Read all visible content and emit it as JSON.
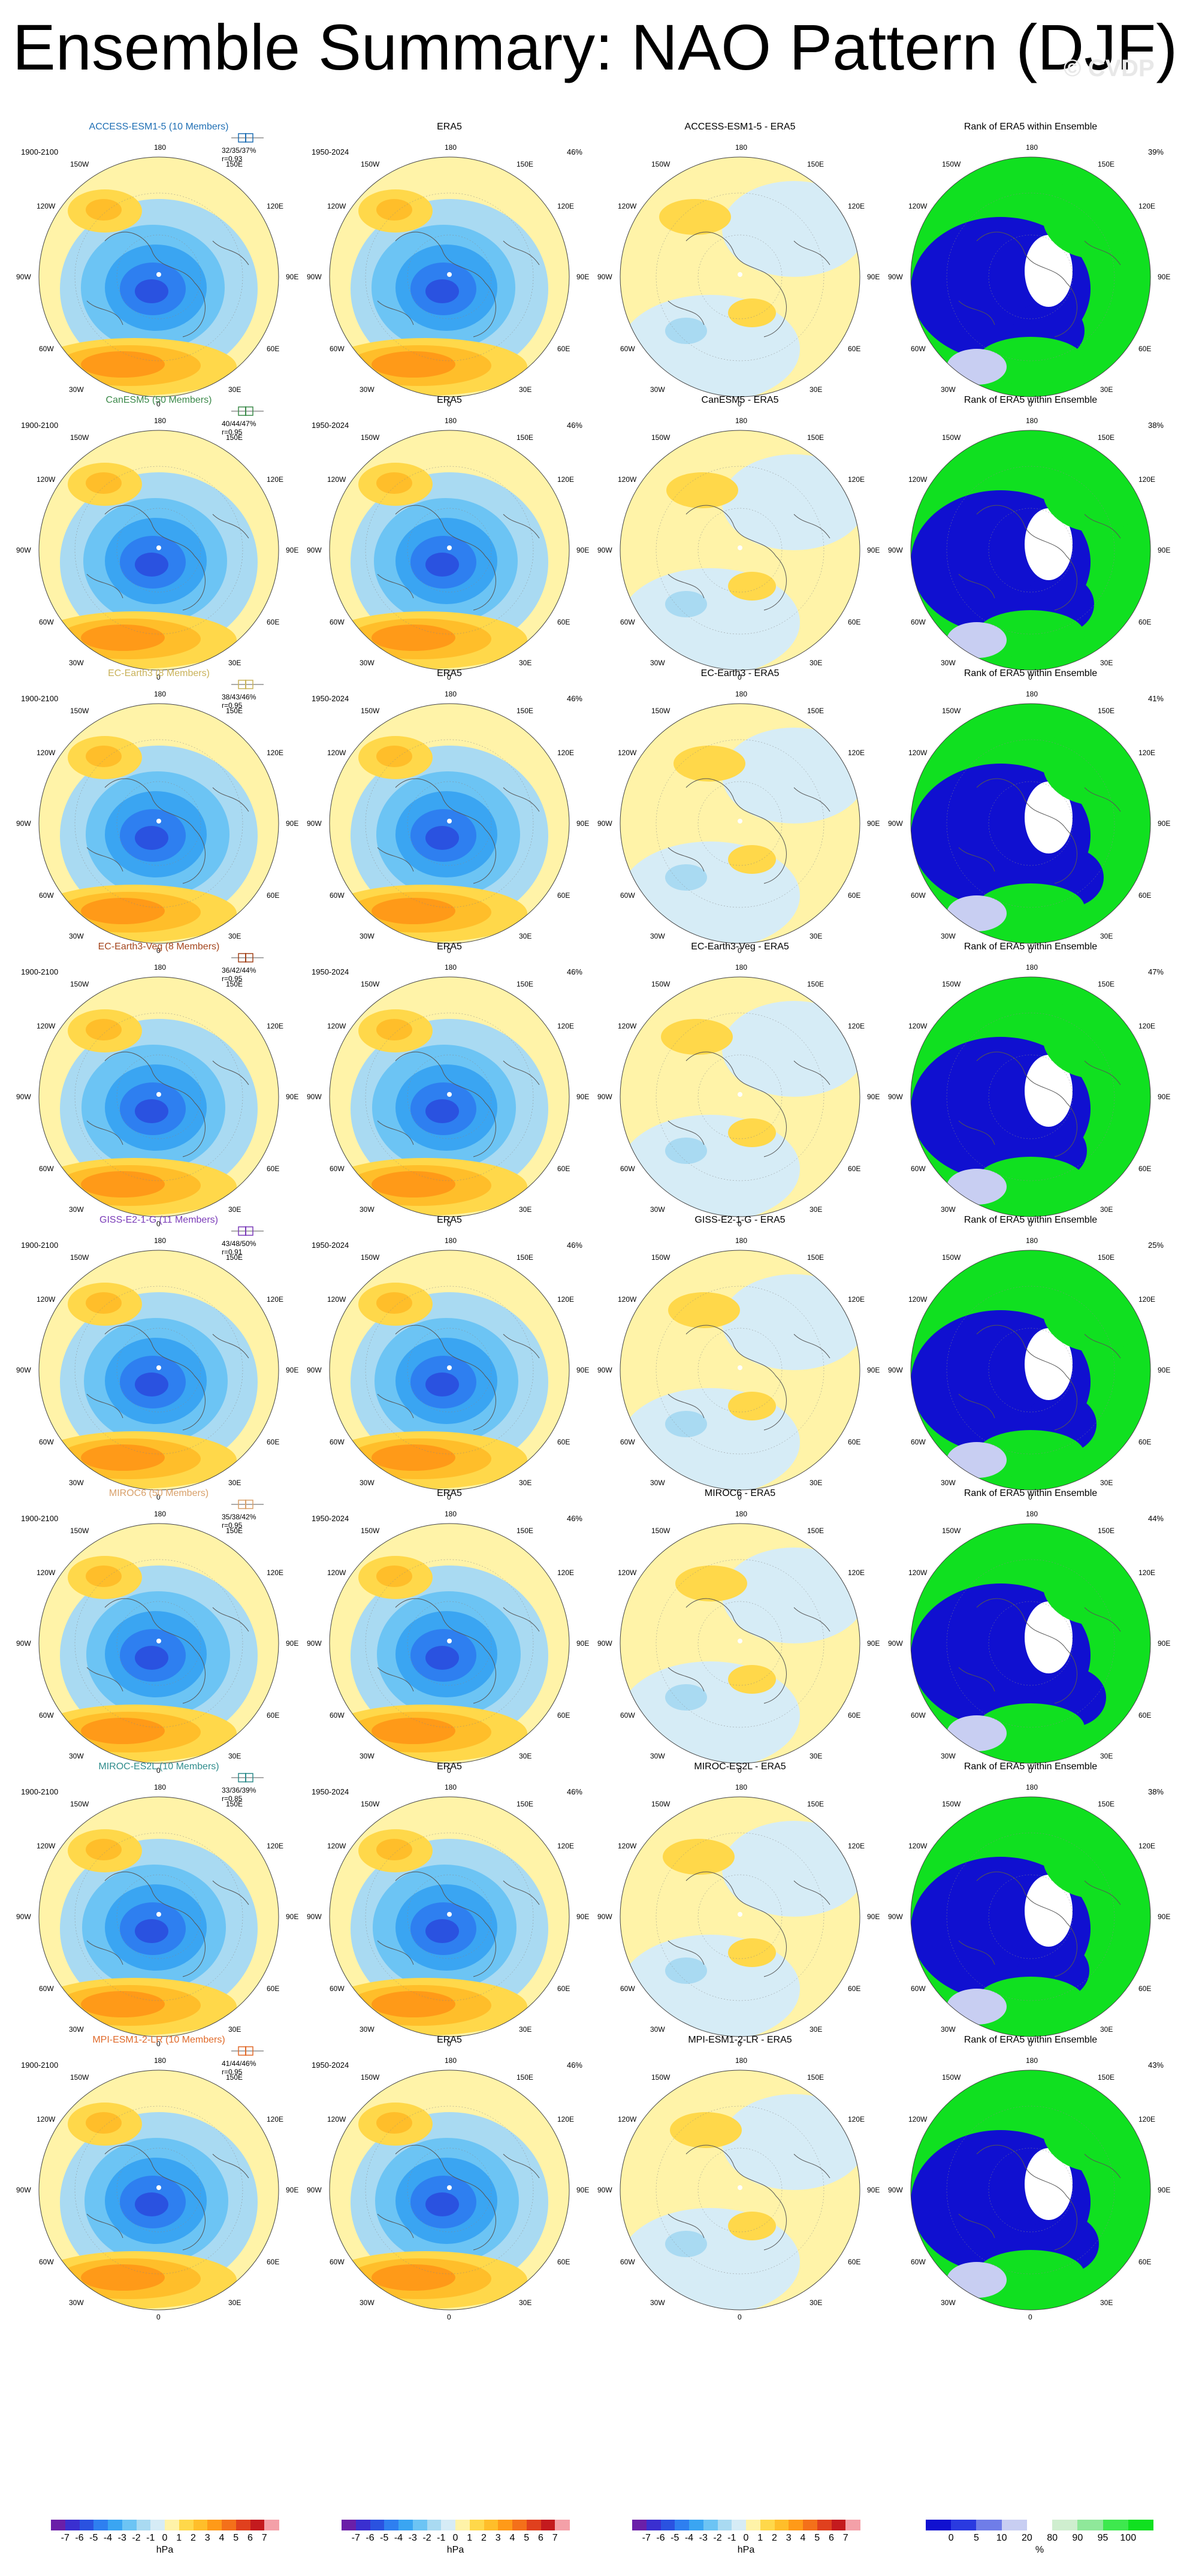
{
  "title": "Ensemble Summary: NAO Pattern (DJF)",
  "watermark": "© CVDP",
  "era5_title": "ERA5",
  "era5_period": "1950-2024",
  "era5_pct": "46%",
  "model_period": "1900-2100",
  "rank_title": "Rank of ERA5 within Ensemble",
  "globe_labels": {
    "top": "180",
    "bottom": "0",
    "left": "90W",
    "right": "90E",
    "ul1": "150W",
    "ul2": "120W",
    "ll1": "60W",
    "ll2": "30W",
    "ur1": "150E",
    "ur2": "120E",
    "lr1": "60E",
    "lr2": "30E"
  },
  "rows": [
    {
      "model": "ACCESS-ESM1-5 (10 Members)",
      "model_color": "#1f6fb4",
      "stats1": "32/35/37%",
      "stats2": "r=0.93",
      "diff": "ACCESS-ESM1-5 - ERA5",
      "rank_pct": "39%"
    },
    {
      "model": "CanESM5 (50 Members)",
      "model_color": "#3c8a4a",
      "stats1": "40/44/47%",
      "stats2": "r=0.95",
      "diff": "CanESM5 - ERA5",
      "rank_pct": "38%"
    },
    {
      "model": "EC-Earth3 (8 Members)",
      "model_color": "#c9b25a",
      "stats1": "38/43/46%",
      "stats2": "r=0.95",
      "diff": "EC-Earth3 - ERA5",
      "rank_pct": "41%"
    },
    {
      "model": "EC-Earth3-Veg (8 Members)",
      "model_color": "#a3441c",
      "stats1": "36/42/44%",
      "stats2": "r=0.95",
      "diff": "EC-Earth3-Veg - ERA5",
      "rank_pct": "47%"
    },
    {
      "model": "GISS-E2-1-G (11 Members)",
      "model_color": "#7a3bb8",
      "stats1": "43/48/50%",
      "stats2": "r=0.91",
      "diff": "GISS-E2-1-G - ERA5",
      "rank_pct": "25%"
    },
    {
      "model": "MIROC6 (50 Members)",
      "model_color": "#d8a06a",
      "stats1": "35/38/42%",
      "stats2": "r=0.95",
      "diff": "MIROC6 - ERA5",
      "rank_pct": "44%"
    },
    {
      "model": "MIROC-ES2L (10 Members)",
      "model_color": "#2f8c8c",
      "stats1": "33/36/39%",
      "stats2": "r=0.85",
      "diff": "MIROC-ES2L - ERA5",
      "rank_pct": "38%"
    },
    {
      "model": "MPI-ESM1-2-LR (10 Members)",
      "model_color": "#e06a2a",
      "stats1": "41/44/46%",
      "stats2": "r=0.95",
      "diff": "MPI-ESM1-2-LR - ERA5",
      "rank_pct": "43%"
    }
  ],
  "colorbar_hpa": {
    "ticks": [
      "-7",
      "-6",
      "-5",
      "-4",
      "-3",
      "-2",
      "-1",
      "0",
      "1",
      "2",
      "3",
      "4",
      "5",
      "6",
      "7"
    ],
    "unit": "hPa",
    "colors": [
      "#6a1fa8",
      "#3a2fd0",
      "#2a52e0",
      "#2e7ff0",
      "#3aa5f2",
      "#6cc4f4",
      "#a9daf2",
      "#d6ecf6",
      "#fff3a8",
      "#ffd84a",
      "#ffbe2a",
      "#ff9a18",
      "#f4701a",
      "#e0401e",
      "#c41a1e",
      "#f4a0a8"
    ]
  },
  "colorbar_pct": {
    "ticks": [
      "0",
      "5",
      "10",
      "20",
      "80",
      "90",
      "95",
      "100"
    ],
    "unit": "%",
    "colors": [
      "#1010d0",
      "#2a3ae0",
      "#6f7de8",
      "#c8cef2",
      "#ffffff",
      "#cfeecf",
      "#8fe89a",
      "#3ee84e",
      "#10e020"
    ]
  }
}
